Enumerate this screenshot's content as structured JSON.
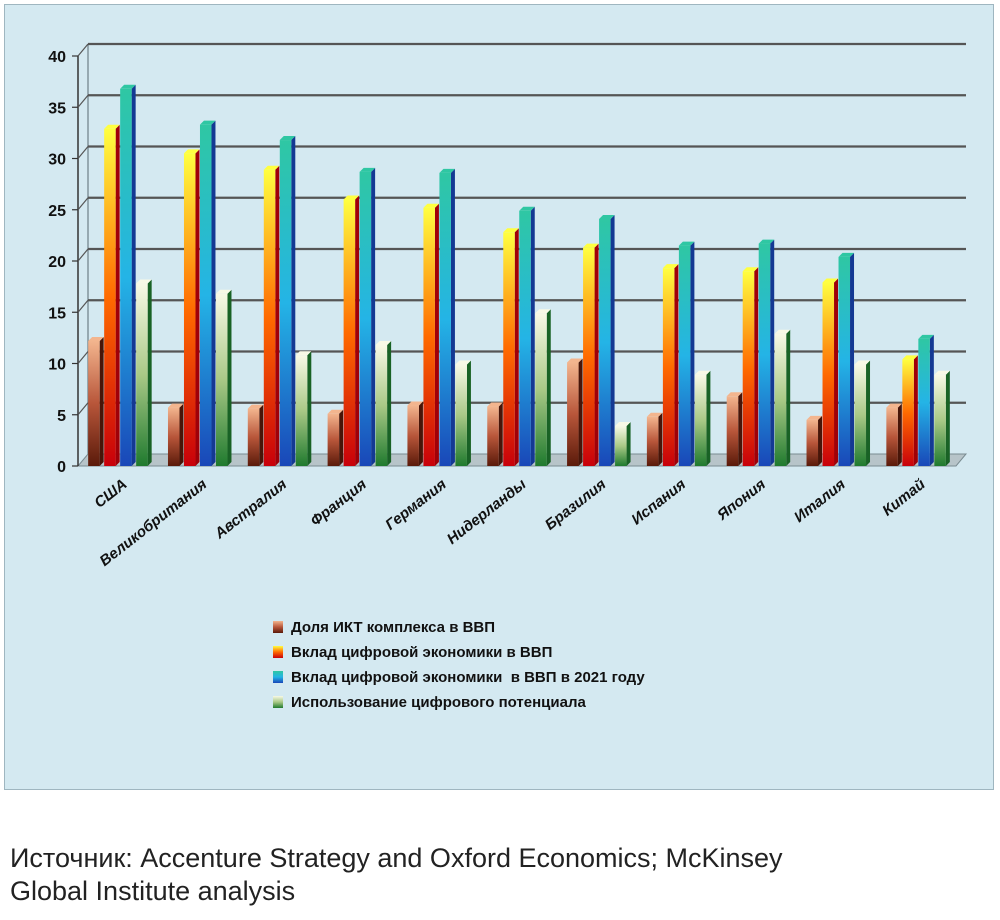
{
  "chart_data": {
    "type": "bar",
    "title": "",
    "xlabel": "",
    "ylabel": "",
    "ylim": [
      0,
      40
    ],
    "yticks": [
      0,
      5,
      10,
      15,
      20,
      25,
      30,
      35,
      40
    ],
    "grid": true,
    "legend_position": "bottom-center",
    "categories": [
      "США",
      "Великобритания",
      "Австралия",
      "Франция",
      "Германия",
      "Нидерланды",
      "Бразилия",
      "Испания",
      "Япония",
      "Италия",
      "Китай"
    ],
    "series": [
      {
        "name": "Доля ИКТ комплекса в ВВП",
        "values": [
          12.2,
          5.7,
          5.6,
          5.1,
          5.9,
          5.8,
          10.1,
          4.8,
          6.8,
          4.5,
          5.7
        ]
      },
      {
        "name": "Вклад цифровой экономики в ВВП",
        "values": [
          32.9,
          30.5,
          28.9,
          26.0,
          25.2,
          22.8,
          21.3,
          19.3,
          19.0,
          17.9,
          10.4
        ]
      },
      {
        "name": "Вклад цифровой экономики  в ВВП в 2021 году",
        "values": [
          36.8,
          33.3,
          31.8,
          28.7,
          28.6,
          24.9,
          24.1,
          21.5,
          21.7,
          20.4,
          12.4
        ]
      },
      {
        "name": "Использование цифрового потенциала",
        "values": [
          17.8,
          16.8,
          10.8,
          11.8,
          9.9,
          14.9,
          3.9,
          8.9,
          12.9,
          9.9,
          8.9
        ]
      }
    ],
    "series_colors": [
      {
        "top": "#f3b58e",
        "mid": "#b8563a",
        "bottom": "#5a1a0a"
      },
      {
        "top": "#ffff40",
        "mid": "#ff6a00",
        "bottom": "#c8000a"
      },
      {
        "top": "#2fc7a3",
        "mid": "#24b4e6",
        "bottom": "#1947b8"
      },
      {
        "top": "#f8f9e6",
        "mid": "#a9c986",
        "bottom": "#1f7a2e"
      }
    ]
  },
  "source": {
    "line1": "Источник: Accenture Strategy and Oxford Economics; McKinsey",
    "line2": "Global Institute analysis"
  }
}
